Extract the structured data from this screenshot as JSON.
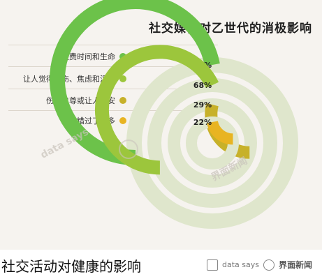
{
  "chart_data": {
    "type": "radial-bar",
    "title": "社交媒体对乙世代的消极影响",
    "categories": [
      "浪费时间和生命",
      "让人觉得悲伤、焦虑和沮丧",
      "伤害自尊或让人不安",
      "感觉错过了许多"
    ],
    "values": [
      72,
      68,
      29,
      22
    ],
    "value_labels": [
      "72%",
      "68%",
      "29%",
      "22%"
    ],
    "colors": [
      "#6cc24a",
      "#9cc63c",
      "#c7b12a",
      "#e8b422"
    ],
    "track_color": "#dfe6cc",
    "ylim": [
      0,
      100
    ]
  },
  "watermark": {
    "brand": "界面新闻",
    "sub": "data says"
  },
  "caption": "社交活动对健康的影响",
  "footer": {
    "sub": "data says",
    "brand": "界面新闻"
  }
}
